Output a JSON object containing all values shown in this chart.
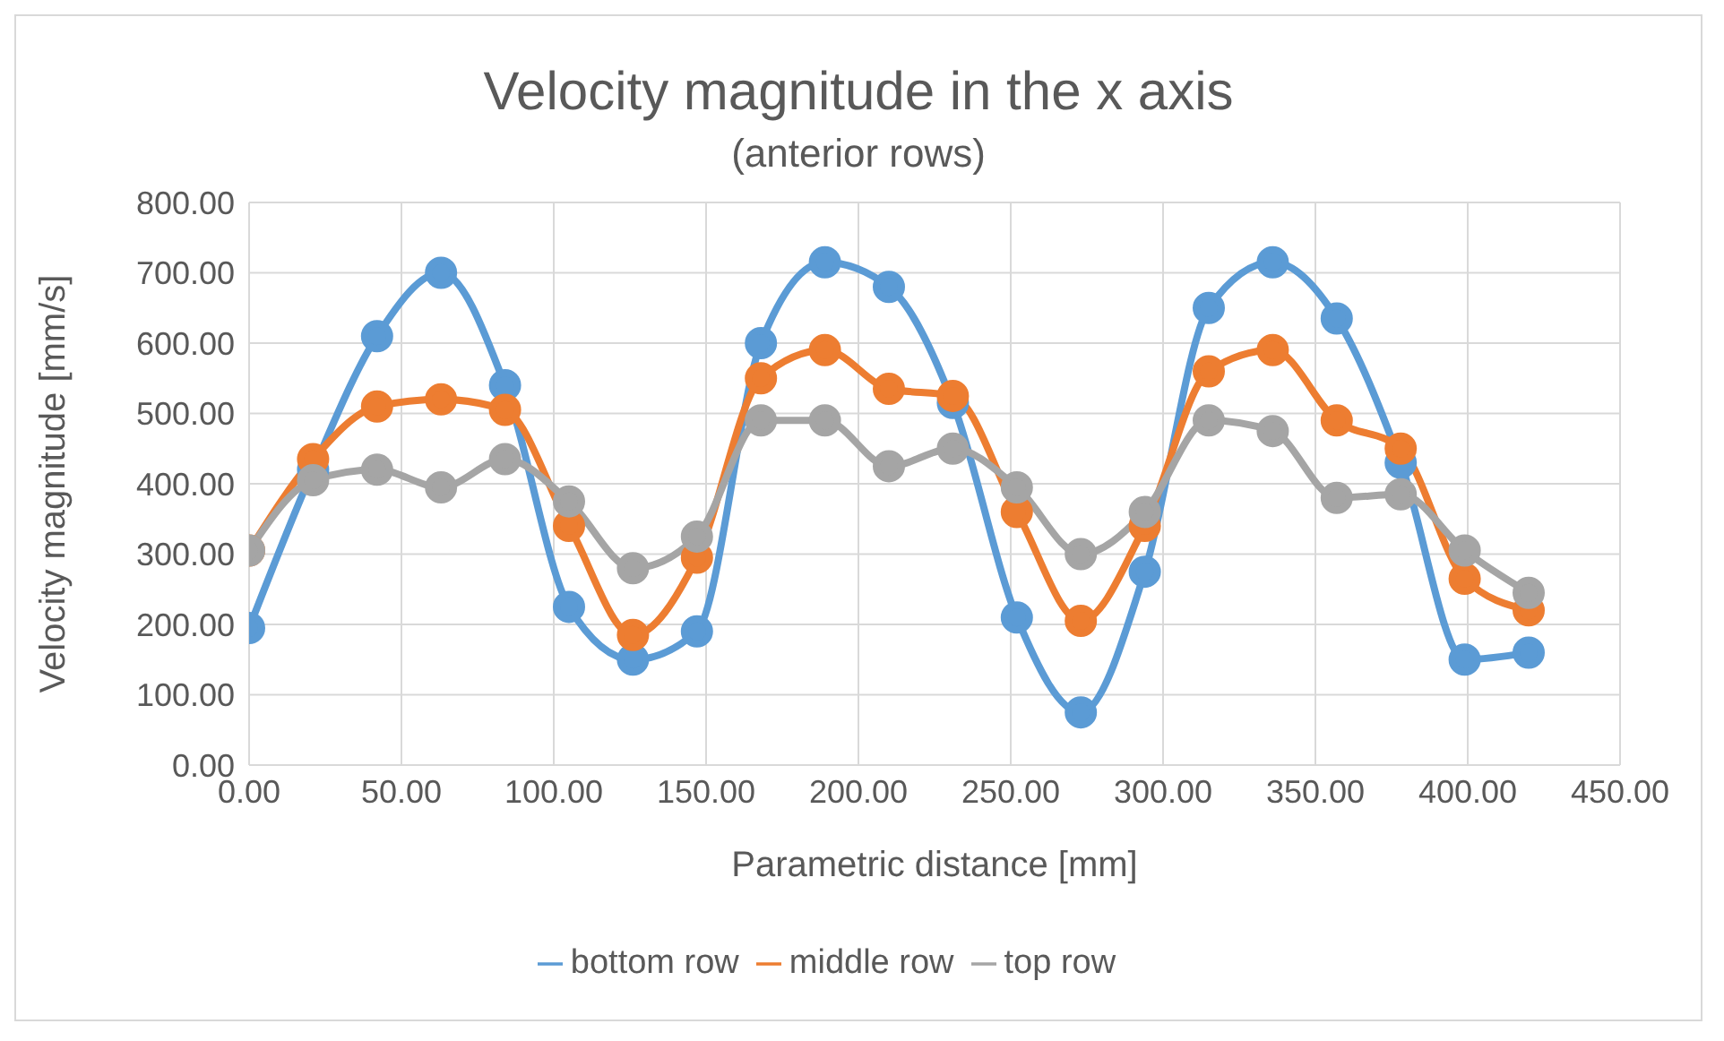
{
  "chart_data": {
    "type": "line",
    "title": "Velocity magnitude in the x axis",
    "subtitle": "(anterior rows)",
    "xlabel": "Parametric distance [mm]",
    "ylabel": "Velocity magnitude [mm/s]",
    "x": [
      0,
      21,
      42,
      63,
      84,
      105,
      126,
      147,
      168,
      189,
      210,
      231,
      252,
      273,
      294,
      315,
      336,
      357,
      378,
      399,
      420
    ],
    "series": [
      {
        "name": "bottom row",
        "color": "#5b9bd5",
        "values": [
          195,
          420,
          610,
          700,
          540,
          225,
          150,
          190,
          600,
          715,
          680,
          515,
          210,
          75,
          275,
          650,
          715,
          635,
          430,
          150,
          160
        ]
      },
      {
        "name": "middle row",
        "color": "#ed7d31",
        "values": [
          305,
          435,
          510,
          520,
          505,
          340,
          185,
          295,
          550,
          590,
          535,
          525,
          360,
          205,
          340,
          560,
          590,
          490,
          450,
          265,
          220
        ]
      },
      {
        "name": "top row",
        "color": "#a5a5a5",
        "values": [
          305,
          405,
          420,
          395,
          435,
          375,
          280,
          325,
          490,
          490,
          425,
          450,
          395,
          300,
          360,
          490,
          475,
          380,
          385,
          305,
          245
        ]
      }
    ],
    "xlim": [
      0,
      450
    ],
    "xticks": [
      {
        "value": 0,
        "label": "0.00"
      },
      {
        "value": 50,
        "label": "50.00"
      },
      {
        "value": 100,
        "label": "100.00"
      },
      {
        "value": 150,
        "label": "150.00"
      },
      {
        "value": 200,
        "label": "200.00"
      },
      {
        "value": 250,
        "label": "250.00"
      },
      {
        "value": 300,
        "label": "300.00"
      },
      {
        "value": 350,
        "label": "350.00"
      },
      {
        "value": 400,
        "label": "400.00"
      },
      {
        "value": 450,
        "label": "450.00"
      }
    ],
    "ylim": [
      0,
      800
    ],
    "yticks": [
      {
        "value": 0,
        "label": "0.00"
      },
      {
        "value": 100,
        "label": "100.00"
      },
      {
        "value": 200,
        "label": "200.00"
      },
      {
        "value": 300,
        "label": "300.00"
      },
      {
        "value": 400,
        "label": "400.00"
      },
      {
        "value": 500,
        "label": "500.00"
      },
      {
        "value": 600,
        "label": "600.00"
      },
      {
        "value": 700,
        "label": "700.00"
      },
      {
        "value": 800,
        "label": "800.00"
      }
    ],
    "grid": true,
    "legend": "bottom",
    "marker": "circle",
    "line_style": "solid"
  }
}
